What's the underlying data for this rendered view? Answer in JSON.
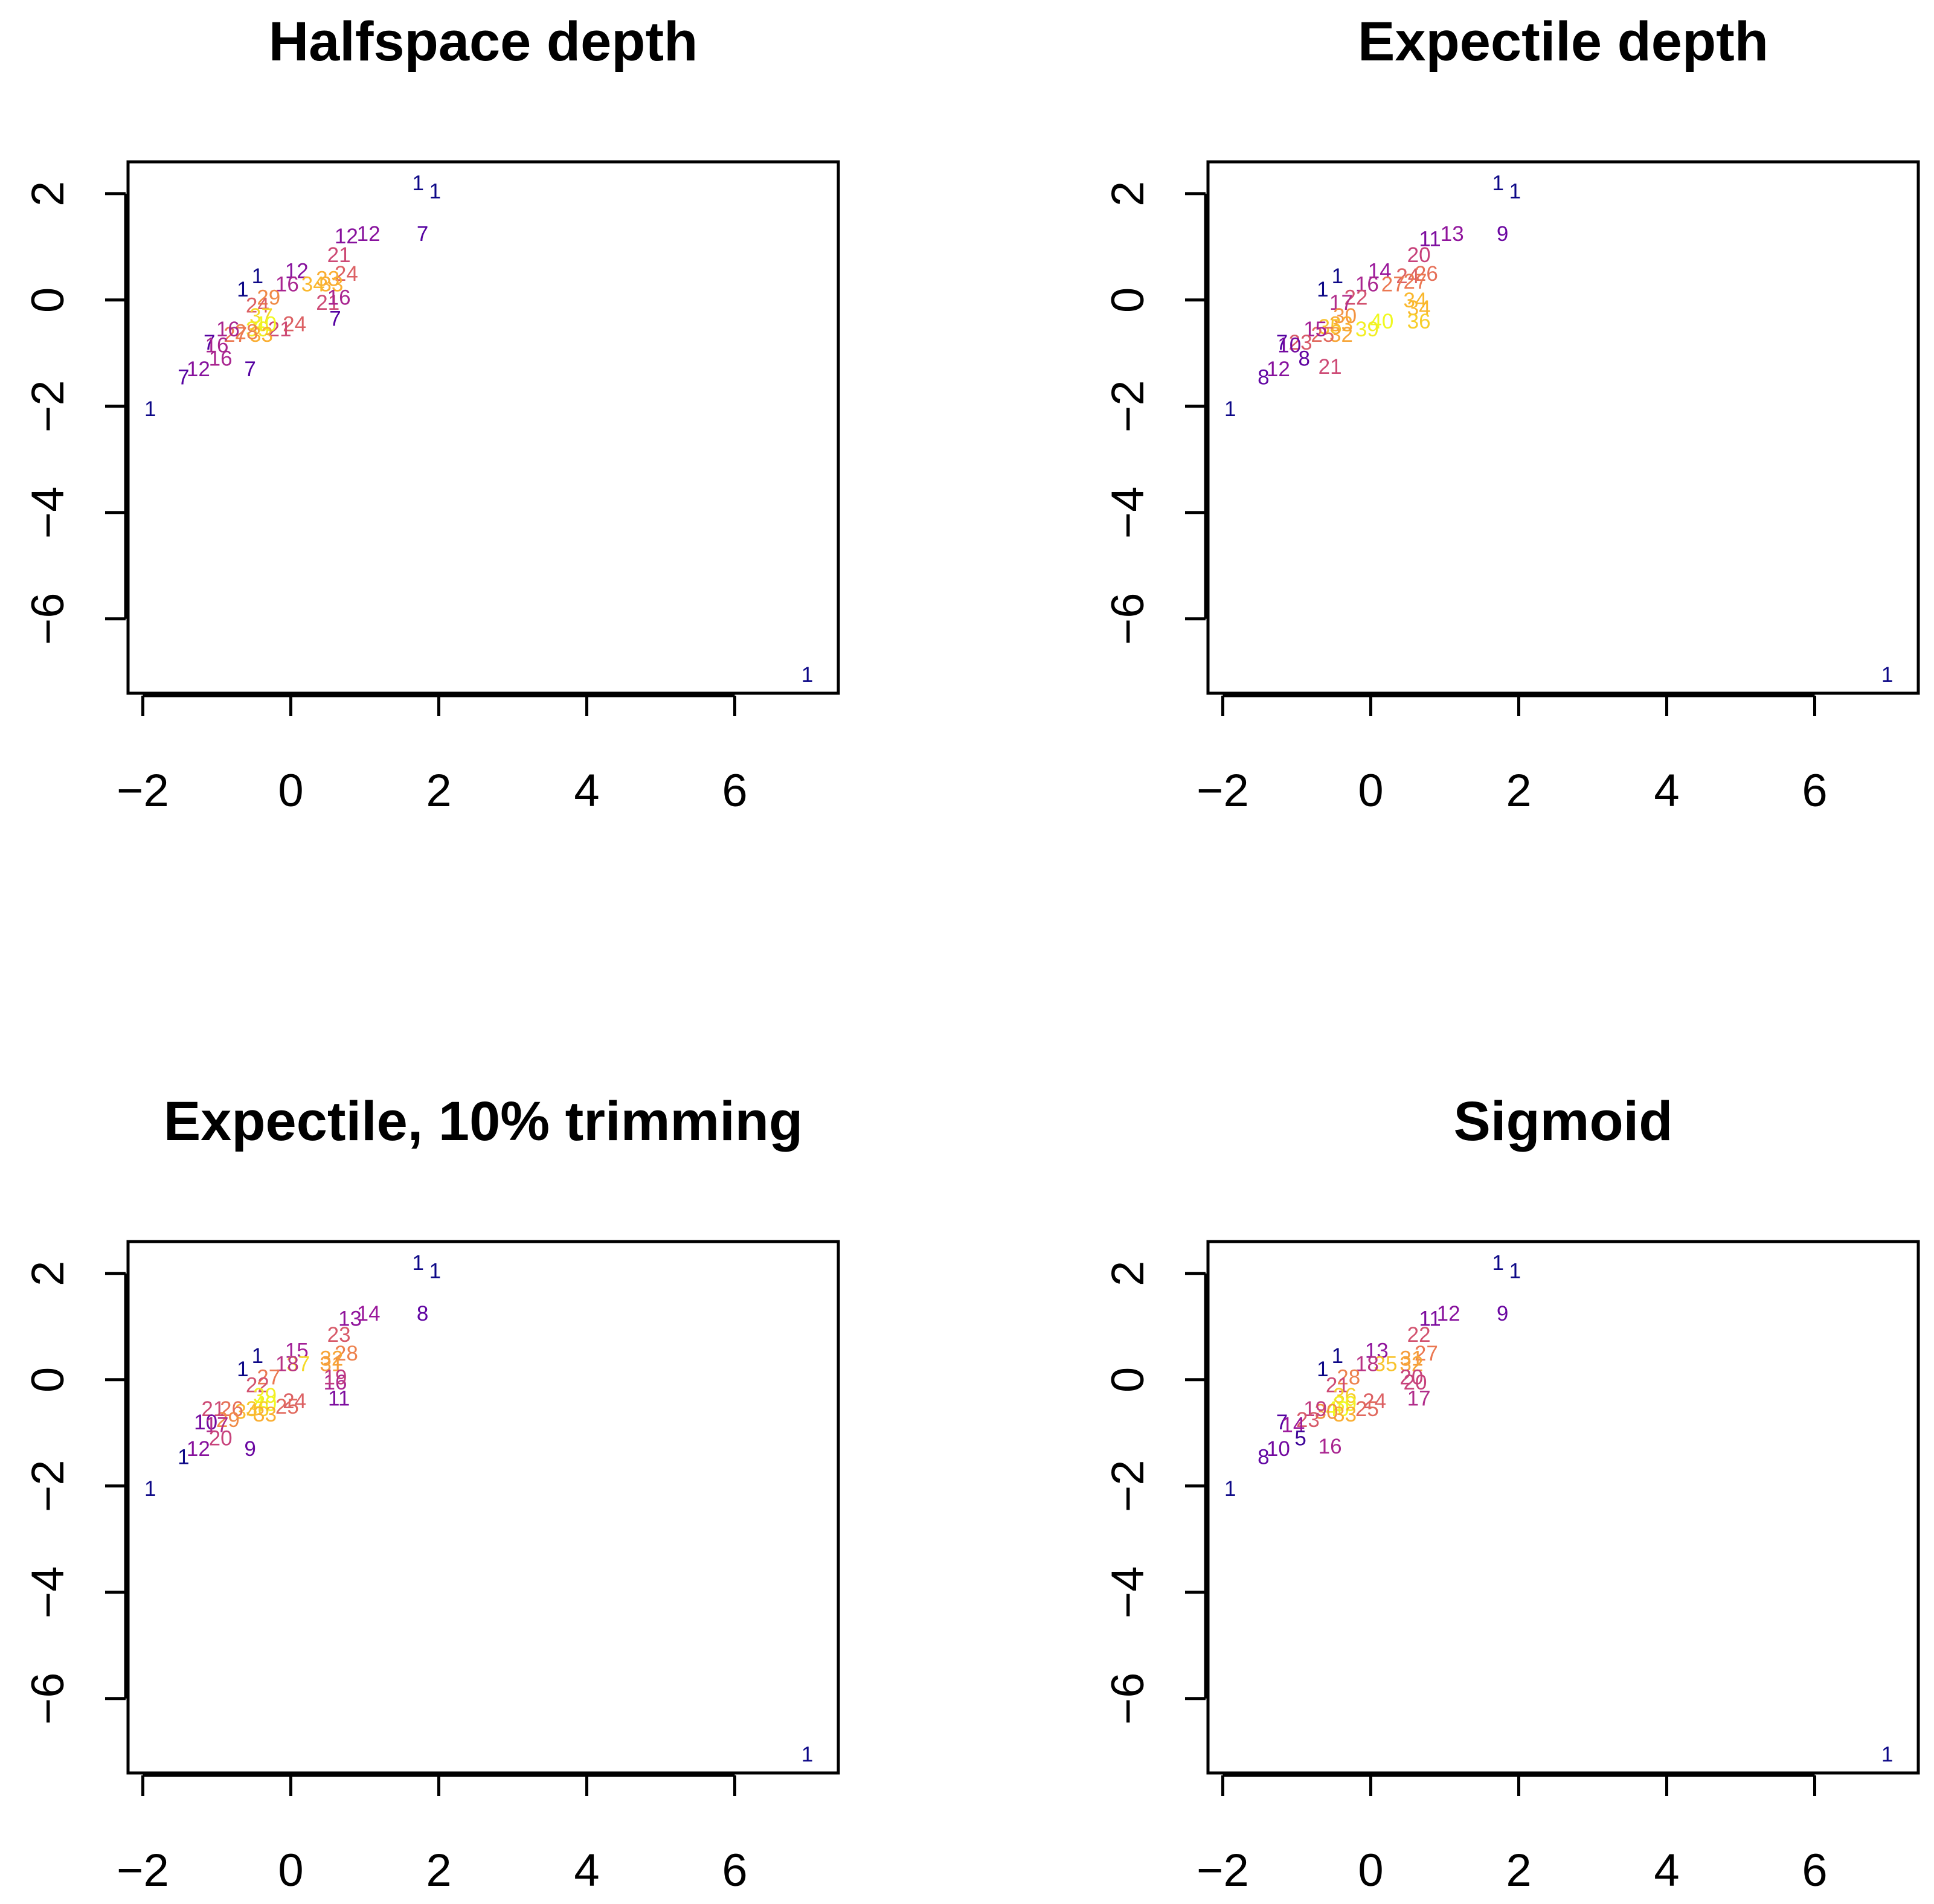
{
  "figure": {
    "panels_layout": "2x2"
  },
  "palette": [
    "#0d0887",
    "#5b02a3",
    "#9a179b",
    "#cb4678",
    "#eb7852",
    "#fbb32f",
    "#f0f921"
  ],
  "chart_data": [
    {
      "type": "scatter",
      "title": "Halfspace depth",
      "xlabel": "",
      "ylabel": "",
      "xlim": [
        -2.2,
        7.4
      ],
      "ylim": [
        -7.4,
        2.6
      ],
      "x_ticks": [
        -2,
        0,
        2,
        4,
        6
      ],
      "x_tick_labels": [
        "−2",
        "0",
        "2",
        "4",
        "6"
      ],
      "y_ticks": [
        -6,
        -4,
        -2,
        0,
        2
      ],
      "y_tick_labels": [
        "−6",
        "−4",
        "−2",
        "0",
        "2"
      ],
      "max_label": 40,
      "points": [
        {
          "x": 1.72,
          "y": 2.2,
          "label": "1"
        },
        {
          "x": 1.95,
          "y": 2.05,
          "label": "1"
        },
        {
          "x": 1.78,
          "y": 1.25,
          "label": "7"
        },
        {
          "x": 0.75,
          "y": 1.2,
          "label": "12"
        },
        {
          "x": 1.05,
          "y": 1.25,
          "label": "12"
        },
        {
          "x": 0.65,
          "y": 0.85,
          "label": "21"
        },
        {
          "x": 0.08,
          "y": 0.55,
          "label": "12"
        },
        {
          "x": 0.75,
          "y": 0.5,
          "label": "24"
        },
        {
          "x": 0.5,
          "y": 0.4,
          "label": "33"
        },
        {
          "x": 0.55,
          "y": 0.3,
          "label": "33"
        },
        {
          "x": 0.3,
          "y": 0.3,
          "label": "34"
        },
        {
          "x": -0.05,
          "y": 0.3,
          "label": "16"
        },
        {
          "x": -0.45,
          "y": 0.45,
          "label": "1"
        },
        {
          "x": -0.65,
          "y": 0.2,
          "label": "1"
        },
        {
          "x": -0.3,
          "y": 0.05,
          "label": "29"
        },
        {
          "x": -0.45,
          "y": -0.1,
          "label": "24"
        },
        {
          "x": 0.5,
          "y": -0.05,
          "label": "21"
        },
        {
          "x": 0.65,
          "y": 0.05,
          "label": "16"
        },
        {
          "x": 0.6,
          "y": -0.35,
          "label": "7"
        },
        {
          "x": 0.05,
          "y": -0.45,
          "label": "24"
        },
        {
          "x": -0.15,
          "y": -0.55,
          "label": "21"
        },
        {
          "x": -0.4,
          "y": -0.3,
          "label": "37"
        },
        {
          "x": -0.35,
          "y": -0.45,
          "label": "40"
        },
        {
          "x": -0.45,
          "y": -0.55,
          "label": "39"
        },
        {
          "x": -0.4,
          "y": -0.65,
          "label": "33"
        },
        {
          "x": -0.6,
          "y": -0.6,
          "label": "28"
        },
        {
          "x": -0.75,
          "y": -0.65,
          "label": "27"
        },
        {
          "x": -0.85,
          "y": -0.55,
          "label": "16"
        },
        {
          "x": -1.1,
          "y": -0.8,
          "label": "7"
        },
        {
          "x": -1.0,
          "y": -0.85,
          "label": "16"
        },
        {
          "x": -0.95,
          "y": -1.1,
          "label": "16"
        },
        {
          "x": -1.25,
          "y": -1.3,
          "label": "12"
        },
        {
          "x": -1.45,
          "y": -1.45,
          "label": "7"
        },
        {
          "x": -0.55,
          "y": -1.3,
          "label": "7"
        },
        {
          "x": -1.9,
          "y": -2.05,
          "label": "1"
        },
        {
          "x": 6.98,
          "y": -7.05,
          "label": "1"
        }
      ]
    },
    {
      "type": "scatter",
      "title": "Expectile depth",
      "xlabel": "",
      "ylabel": "",
      "xlim": [
        -2.2,
        7.4
      ],
      "ylim": [
        -7.4,
        2.6
      ],
      "x_ticks": [
        -2,
        0,
        2,
        4,
        6
      ],
      "x_tick_labels": [
        "−2",
        "0",
        "2",
        "4",
        "6"
      ],
      "y_ticks": [
        -6,
        -4,
        -2,
        0,
        2
      ],
      "y_tick_labels": [
        "−6",
        "−4",
        "−2",
        "0",
        "2"
      ],
      "max_label": 40,
      "points": [
        {
          "x": 1.72,
          "y": 2.2,
          "label": "1"
        },
        {
          "x": 1.95,
          "y": 2.05,
          "label": "1"
        },
        {
          "x": 1.78,
          "y": 1.25,
          "label": "9"
        },
        {
          "x": 0.8,
          "y": 1.15,
          "label": "11"
        },
        {
          "x": 1.1,
          "y": 1.25,
          "label": "13"
        },
        {
          "x": 0.65,
          "y": 0.85,
          "label": "20"
        },
        {
          "x": 0.12,
          "y": 0.55,
          "label": "14"
        },
        {
          "x": 0.5,
          "y": 0.45,
          "label": "24"
        },
        {
          "x": 0.75,
          "y": 0.5,
          "label": "26"
        },
        {
          "x": 0.6,
          "y": 0.35,
          "label": "27"
        },
        {
          "x": 0.3,
          "y": 0.3,
          "label": "27"
        },
        {
          "x": -0.05,
          "y": 0.3,
          "label": "16"
        },
        {
          "x": -0.45,
          "y": 0.45,
          "label": "1"
        },
        {
          "x": -0.65,
          "y": 0.2,
          "label": "1"
        },
        {
          "x": -0.2,
          "y": 0.05,
          "label": "22"
        },
        {
          "x": -0.4,
          "y": -0.05,
          "label": "17"
        },
        {
          "x": 0.6,
          "y": 0.0,
          "label": "34"
        },
        {
          "x": 0.65,
          "y": -0.15,
          "label": "34"
        },
        {
          "x": 0.65,
          "y": -0.4,
          "label": "36"
        },
        {
          "x": 0.15,
          "y": -0.4,
          "label": "40"
        },
        {
          "x": -0.05,
          "y": -0.55,
          "label": "39"
        },
        {
          "x": -0.35,
          "y": -0.3,
          "label": "30"
        },
        {
          "x": -0.4,
          "y": -0.45,
          "label": "33"
        },
        {
          "x": -0.55,
          "y": -0.5,
          "label": "35"
        },
        {
          "x": -0.4,
          "y": -0.65,
          "label": "32"
        },
        {
          "x": -0.65,
          "y": -0.65,
          "label": "25"
        },
        {
          "x": -0.75,
          "y": -0.55,
          "label": "15"
        },
        {
          "x": -0.95,
          "y": -0.8,
          "label": "23"
        },
        {
          "x": -1.2,
          "y": -0.8,
          "label": "7"
        },
        {
          "x": -1.1,
          "y": -0.85,
          "label": "10"
        },
        {
          "x": -0.9,
          "y": -1.1,
          "label": "8"
        },
        {
          "x": -1.25,
          "y": -1.3,
          "label": "12"
        },
        {
          "x": -1.45,
          "y": -1.45,
          "label": "8"
        },
        {
          "x": -0.55,
          "y": -1.25,
          "label": "21"
        },
        {
          "x": -1.9,
          "y": -2.05,
          "label": "1"
        },
        {
          "x": 6.98,
          "y": -7.05,
          "label": "1"
        }
      ]
    },
    {
      "type": "scatter",
      "title": "Expectile, 10% trimming",
      "xlabel": "",
      "ylabel": "",
      "xlim": [
        -2.2,
        7.4
      ],
      "ylim": [
        -7.4,
        2.6
      ],
      "x_ticks": [
        -2,
        0,
        2,
        4,
        6
      ],
      "x_tick_labels": [
        "−2",
        "0",
        "2",
        "4",
        "6"
      ],
      "y_ticks": [
        -6,
        -4,
        -2,
        0,
        2
      ],
      "y_tick_labels": [
        "−6",
        "−4",
        "−2",
        "0",
        "2"
      ],
      "max_label": 40,
      "points": [
        {
          "x": 1.72,
          "y": 2.2,
          "label": "1"
        },
        {
          "x": 1.95,
          "y": 2.05,
          "label": "1"
        },
        {
          "x": 1.78,
          "y": 1.25,
          "label": "8"
        },
        {
          "x": 0.8,
          "y": 1.15,
          "label": "13"
        },
        {
          "x": 1.05,
          "y": 1.25,
          "label": "14"
        },
        {
          "x": 0.65,
          "y": 0.85,
          "label": "23"
        },
        {
          "x": 0.08,
          "y": 0.55,
          "label": "15"
        },
        {
          "x": 0.75,
          "y": 0.5,
          "label": "28"
        },
        {
          "x": 0.55,
          "y": 0.4,
          "label": "32"
        },
        {
          "x": 0.55,
          "y": 0.3,
          "label": "31"
        },
        {
          "x": 0.1,
          "y": 0.3,
          "label": "37"
        },
        {
          "x": -0.05,
          "y": 0.3,
          "label": "18"
        },
        {
          "x": -0.45,
          "y": 0.45,
          "label": "1"
        },
        {
          "x": -0.65,
          "y": 0.2,
          "label": "1"
        },
        {
          "x": -0.3,
          "y": 0.05,
          "label": "27"
        },
        {
          "x": -0.45,
          "y": -0.1,
          "label": "22"
        },
        {
          "x": 0.6,
          "y": -0.05,
          "label": "16"
        },
        {
          "x": 0.6,
          "y": 0.05,
          "label": "19"
        },
        {
          "x": 0.65,
          "y": -0.35,
          "label": "11"
        },
        {
          "x": 0.05,
          "y": -0.4,
          "label": "24"
        },
        {
          "x": -0.05,
          "y": -0.5,
          "label": "25"
        },
        {
          "x": -0.35,
          "y": -0.3,
          "label": "39"
        },
        {
          "x": -0.35,
          "y": -0.45,
          "label": "40"
        },
        {
          "x": -0.45,
          "y": -0.55,
          "label": "36"
        },
        {
          "x": -0.35,
          "y": -0.65,
          "label": "33"
        },
        {
          "x": -0.6,
          "y": -0.6,
          "label": "34"
        },
        {
          "x": -0.8,
          "y": -0.55,
          "label": "26"
        },
        {
          "x": -0.85,
          "y": -0.75,
          "label": "29"
        },
        {
          "x": -1.05,
          "y": -0.55,
          "label": "21"
        },
        {
          "x": -1.15,
          "y": -0.8,
          "label": "10"
        },
        {
          "x": -1.0,
          "y": -0.85,
          "label": "17"
        },
        {
          "x": -0.95,
          "y": -1.1,
          "label": "20"
        },
        {
          "x": -1.25,
          "y": -1.3,
          "label": "12"
        },
        {
          "x": -1.45,
          "y": -1.45,
          "label": "1"
        },
        {
          "x": -0.55,
          "y": -1.3,
          "label": "9"
        },
        {
          "x": -1.9,
          "y": -2.05,
          "label": "1"
        },
        {
          "x": 6.98,
          "y": -7.05,
          "label": "1"
        }
      ]
    },
    {
      "type": "scatter",
      "title": "Sigmoid",
      "xlabel": "",
      "ylabel": "",
      "xlim": [
        -2.2,
        7.4
      ],
      "ylim": [
        -7.4,
        2.6
      ],
      "x_ticks": [
        -2,
        0,
        2,
        4,
        6
      ],
      "x_tick_labels": [
        "−2",
        "0",
        "2",
        "4",
        "6"
      ],
      "y_ticks": [
        -6,
        -4,
        -2,
        0,
        2
      ],
      "y_tick_labels": [
        "−6",
        "−4",
        "−2",
        "0",
        "2"
      ],
      "max_label": 40,
      "points": [
        {
          "x": 1.72,
          "y": 2.2,
          "label": "1"
        },
        {
          "x": 1.95,
          "y": 2.05,
          "label": "1"
        },
        {
          "x": 1.78,
          "y": 1.25,
          "label": "9"
        },
        {
          "x": 0.8,
          "y": 1.15,
          "label": "11"
        },
        {
          "x": 1.05,
          "y": 1.25,
          "label": "12"
        },
        {
          "x": 0.65,
          "y": 0.85,
          "label": "22"
        },
        {
          "x": 0.08,
          "y": 0.55,
          "label": "13"
        },
        {
          "x": 0.75,
          "y": 0.5,
          "label": "27"
        },
        {
          "x": 0.55,
          "y": 0.4,
          "label": "31"
        },
        {
          "x": 0.55,
          "y": 0.3,
          "label": "32"
        },
        {
          "x": 0.2,
          "y": 0.3,
          "label": "35"
        },
        {
          "x": -0.05,
          "y": 0.3,
          "label": "18"
        },
        {
          "x": -0.45,
          "y": 0.45,
          "label": "1"
        },
        {
          "x": -0.65,
          "y": 0.2,
          "label": "1"
        },
        {
          "x": -0.3,
          "y": 0.05,
          "label": "28"
        },
        {
          "x": -0.45,
          "y": -0.1,
          "label": "21"
        },
        {
          "x": 0.6,
          "y": -0.05,
          "label": "20"
        },
        {
          "x": 0.55,
          "y": 0.05,
          "label": "20"
        },
        {
          "x": 0.65,
          "y": -0.35,
          "label": "17"
        },
        {
          "x": 0.05,
          "y": -0.4,
          "label": "24"
        },
        {
          "x": -0.05,
          "y": -0.55,
          "label": "25"
        },
        {
          "x": -0.35,
          "y": -0.3,
          "label": "36"
        },
        {
          "x": -0.35,
          "y": -0.45,
          "label": "39"
        },
        {
          "x": -0.45,
          "y": -0.55,
          "label": "40"
        },
        {
          "x": -0.35,
          "y": -0.65,
          "label": "33"
        },
        {
          "x": -0.6,
          "y": -0.6,
          "label": "30"
        },
        {
          "x": -0.75,
          "y": -0.55,
          "label": "19"
        },
        {
          "x": -0.85,
          "y": -0.75,
          "label": "23"
        },
        {
          "x": -1.2,
          "y": -0.8,
          "label": "7"
        },
        {
          "x": -1.05,
          "y": -0.85,
          "label": "14"
        },
        {
          "x": -0.95,
          "y": -1.1,
          "label": "5"
        },
        {
          "x": -1.25,
          "y": -1.3,
          "label": "10"
        },
        {
          "x": -1.45,
          "y": -1.45,
          "label": "8"
        },
        {
          "x": -0.55,
          "y": -1.25,
          "label": "16"
        },
        {
          "x": -1.9,
          "y": -2.05,
          "label": "1"
        },
        {
          "x": 6.98,
          "y": -7.05,
          "label": "1"
        }
      ]
    }
  ]
}
